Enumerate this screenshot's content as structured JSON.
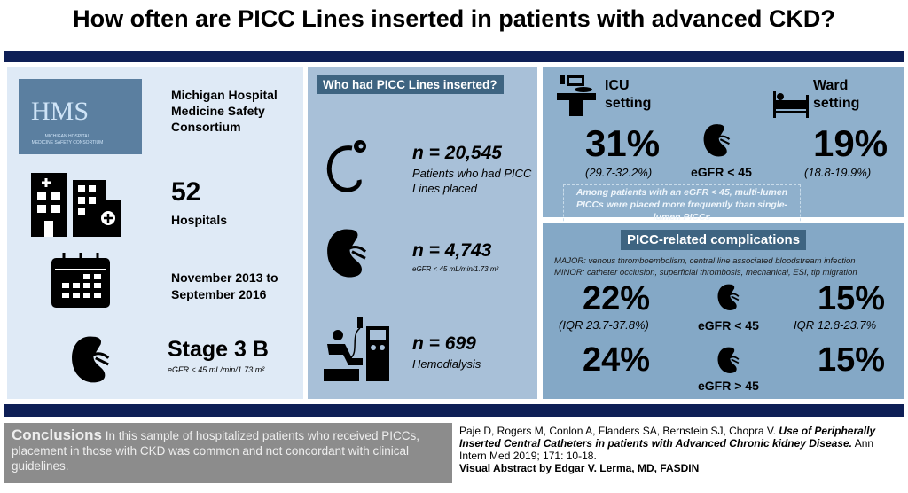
{
  "title": "How often are PICC Lines inserted in patients with advanced CKD?",
  "left": {
    "logo": {
      "abbr": "HMS",
      "sub1": "MICHIGAN HOSPITAL",
      "sub2": "MEDICINE SAFETY CONSORTIUM"
    },
    "org": "Michigan Hospital Medicine Safety Consortium",
    "hospitals_count": "52",
    "hospitals_label": "Hospitals",
    "period": "November 2013 to September 2016",
    "stage": "Stage 3 B",
    "stage_note": "eGFR < 45 mL/min/1.73 m²"
  },
  "middle": {
    "header": "Who had PICC Lines inserted?",
    "items": [
      {
        "n": "n = 20,545",
        "desc": "Patients who had PICC Lines placed"
      },
      {
        "n": "n = 4,743",
        "desc": "eGFR < 45 mL/min/1.73 m²"
      },
      {
        "n": "n = 699",
        "desc": "Hemodialysis"
      }
    ]
  },
  "setting": {
    "icu_label": "ICU setting",
    "ward_label": "Ward setting",
    "icu_pct": "31%",
    "icu_ci": "(29.7-32.2%)",
    "ward_pct": "19%",
    "ward_ci": "(18.8-19.9%)",
    "egfr": "eGFR < 45",
    "note": "Among patients with an eGFR < 45, multi-lumen PICCs were placed more frequently than single-lumen PICCs"
  },
  "complications": {
    "header": "PICC-related complications",
    "major": "MAJOR: venous thromboembolism, central line associated bloodstream infection",
    "minor": "MINOR: catheter occlusion, superficial thrombosis, mechanical, ESI, tip migration",
    "rows": [
      {
        "left": "22%",
        "left_note": "(IQR 23.7-37.8%)",
        "egfr": "eGFR < 45",
        "right": "15%",
        "right_note": "IQR 12.8-23.7%"
      },
      {
        "left": "24%",
        "egfr": "eGFR > 45",
        "right": "15%"
      }
    ]
  },
  "conclusions": {
    "label": "Conclusions",
    "text": "In this sample of hospitalized patients who received PICCs, placement in those with CKD was common and not concordant with clinical guidelines."
  },
  "citation": {
    "authors": "Paje D, Rogers M, Conlon A, Flanders SA, Bernstein SJ, Chopra V.",
    "article": "Use of Peripherally Inserted Central Catheters in patients with Advanced Chronic kidney Disease.",
    "journal": "Ann Intern Med 2019; 171: 10-18.",
    "credit": "Visual Abstract by Edgar V. Lerma, MD, FASDIN"
  }
}
